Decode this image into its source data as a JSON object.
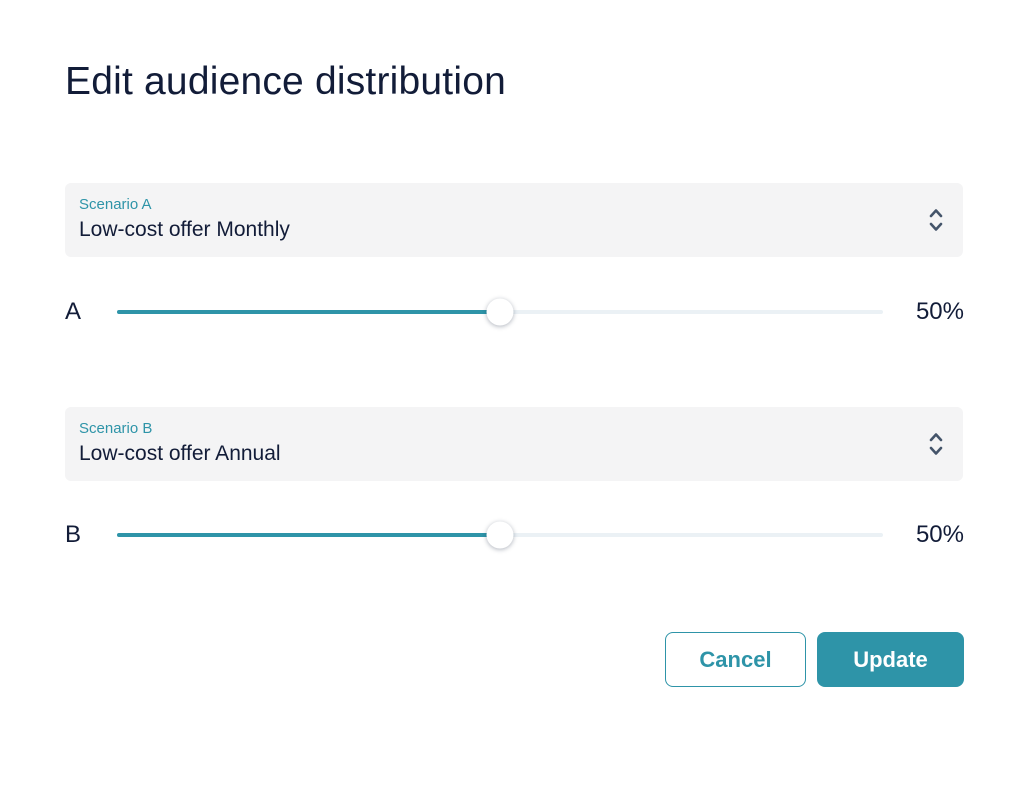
{
  "dialog": {
    "title": "Edit audience distribution"
  },
  "colors": {
    "accent_teal": "#2E94A8",
    "dark_navy": "#121C38",
    "card_background": "#F4F4F5",
    "slider_track_empty": "#EBF1F5",
    "chevron_gray": "#44546A",
    "page_background": "#FFFFFF"
  },
  "icons": {
    "scenario_a_select": "chevron-up-down-icon",
    "scenario_b_select": "chevron-up-down-icon"
  },
  "scenario_a": {
    "label": "Scenario A",
    "value": "Low-cost offer Monthly"
  },
  "scenario_b": {
    "label": "Scenario B",
    "value": "Low-cost offer Annual"
  },
  "slider_a": {
    "label": "A",
    "value": 50,
    "display": "50%"
  },
  "slider_b": {
    "label": "B",
    "value": 50,
    "display": "50%"
  },
  "buttons": {
    "cancel": "Cancel",
    "update": "Update"
  }
}
